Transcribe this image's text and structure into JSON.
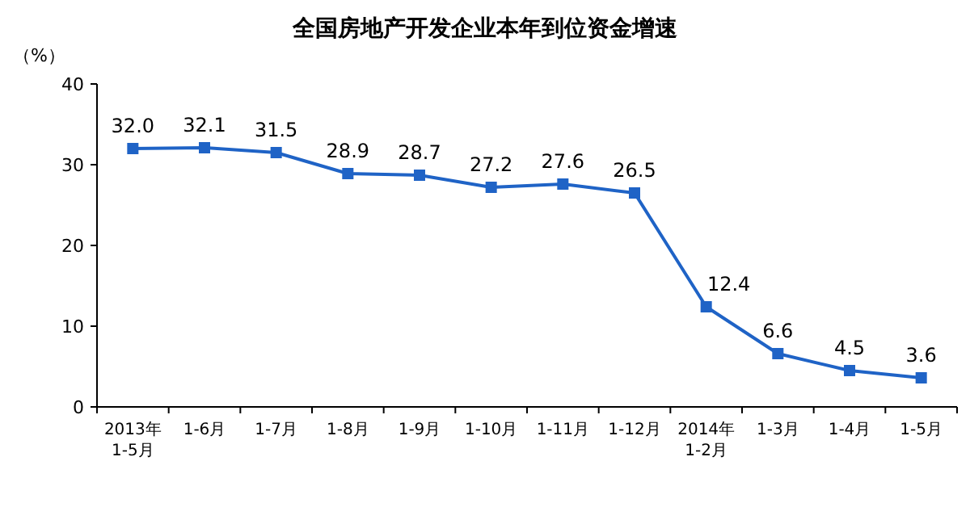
{
  "chart_data": {
    "type": "line",
    "title": "全国房地产开发企业本年到位资金增速",
    "ylabel": "（%）",
    "categories": [
      "2013年\n1-5月",
      "1-6月",
      "1-7月",
      "1-8月",
      "1-9月",
      "1-10月",
      "1-11月",
      "1-12月",
      "2014年\n1-2月",
      "1-3月",
      "1-4月",
      "1-5月"
    ],
    "values": [
      32.0,
      32.1,
      31.5,
      28.9,
      28.7,
      27.2,
      27.6,
      26.5,
      12.4,
      6.6,
      4.5,
      3.6
    ],
    "value_labels": [
      "32.0",
      "32.1",
      "31.5",
      "28.9",
      "28.7",
      "27.2",
      "27.6",
      "26.5",
      "12.4",
      "6.6",
      "4.5",
      "3.6"
    ],
    "color": "#1f63c6",
    "marker": "square",
    "ylim": [
      0,
      40
    ],
    "yticks": [
      0,
      10,
      20,
      30,
      40
    ],
    "grid": false
  }
}
